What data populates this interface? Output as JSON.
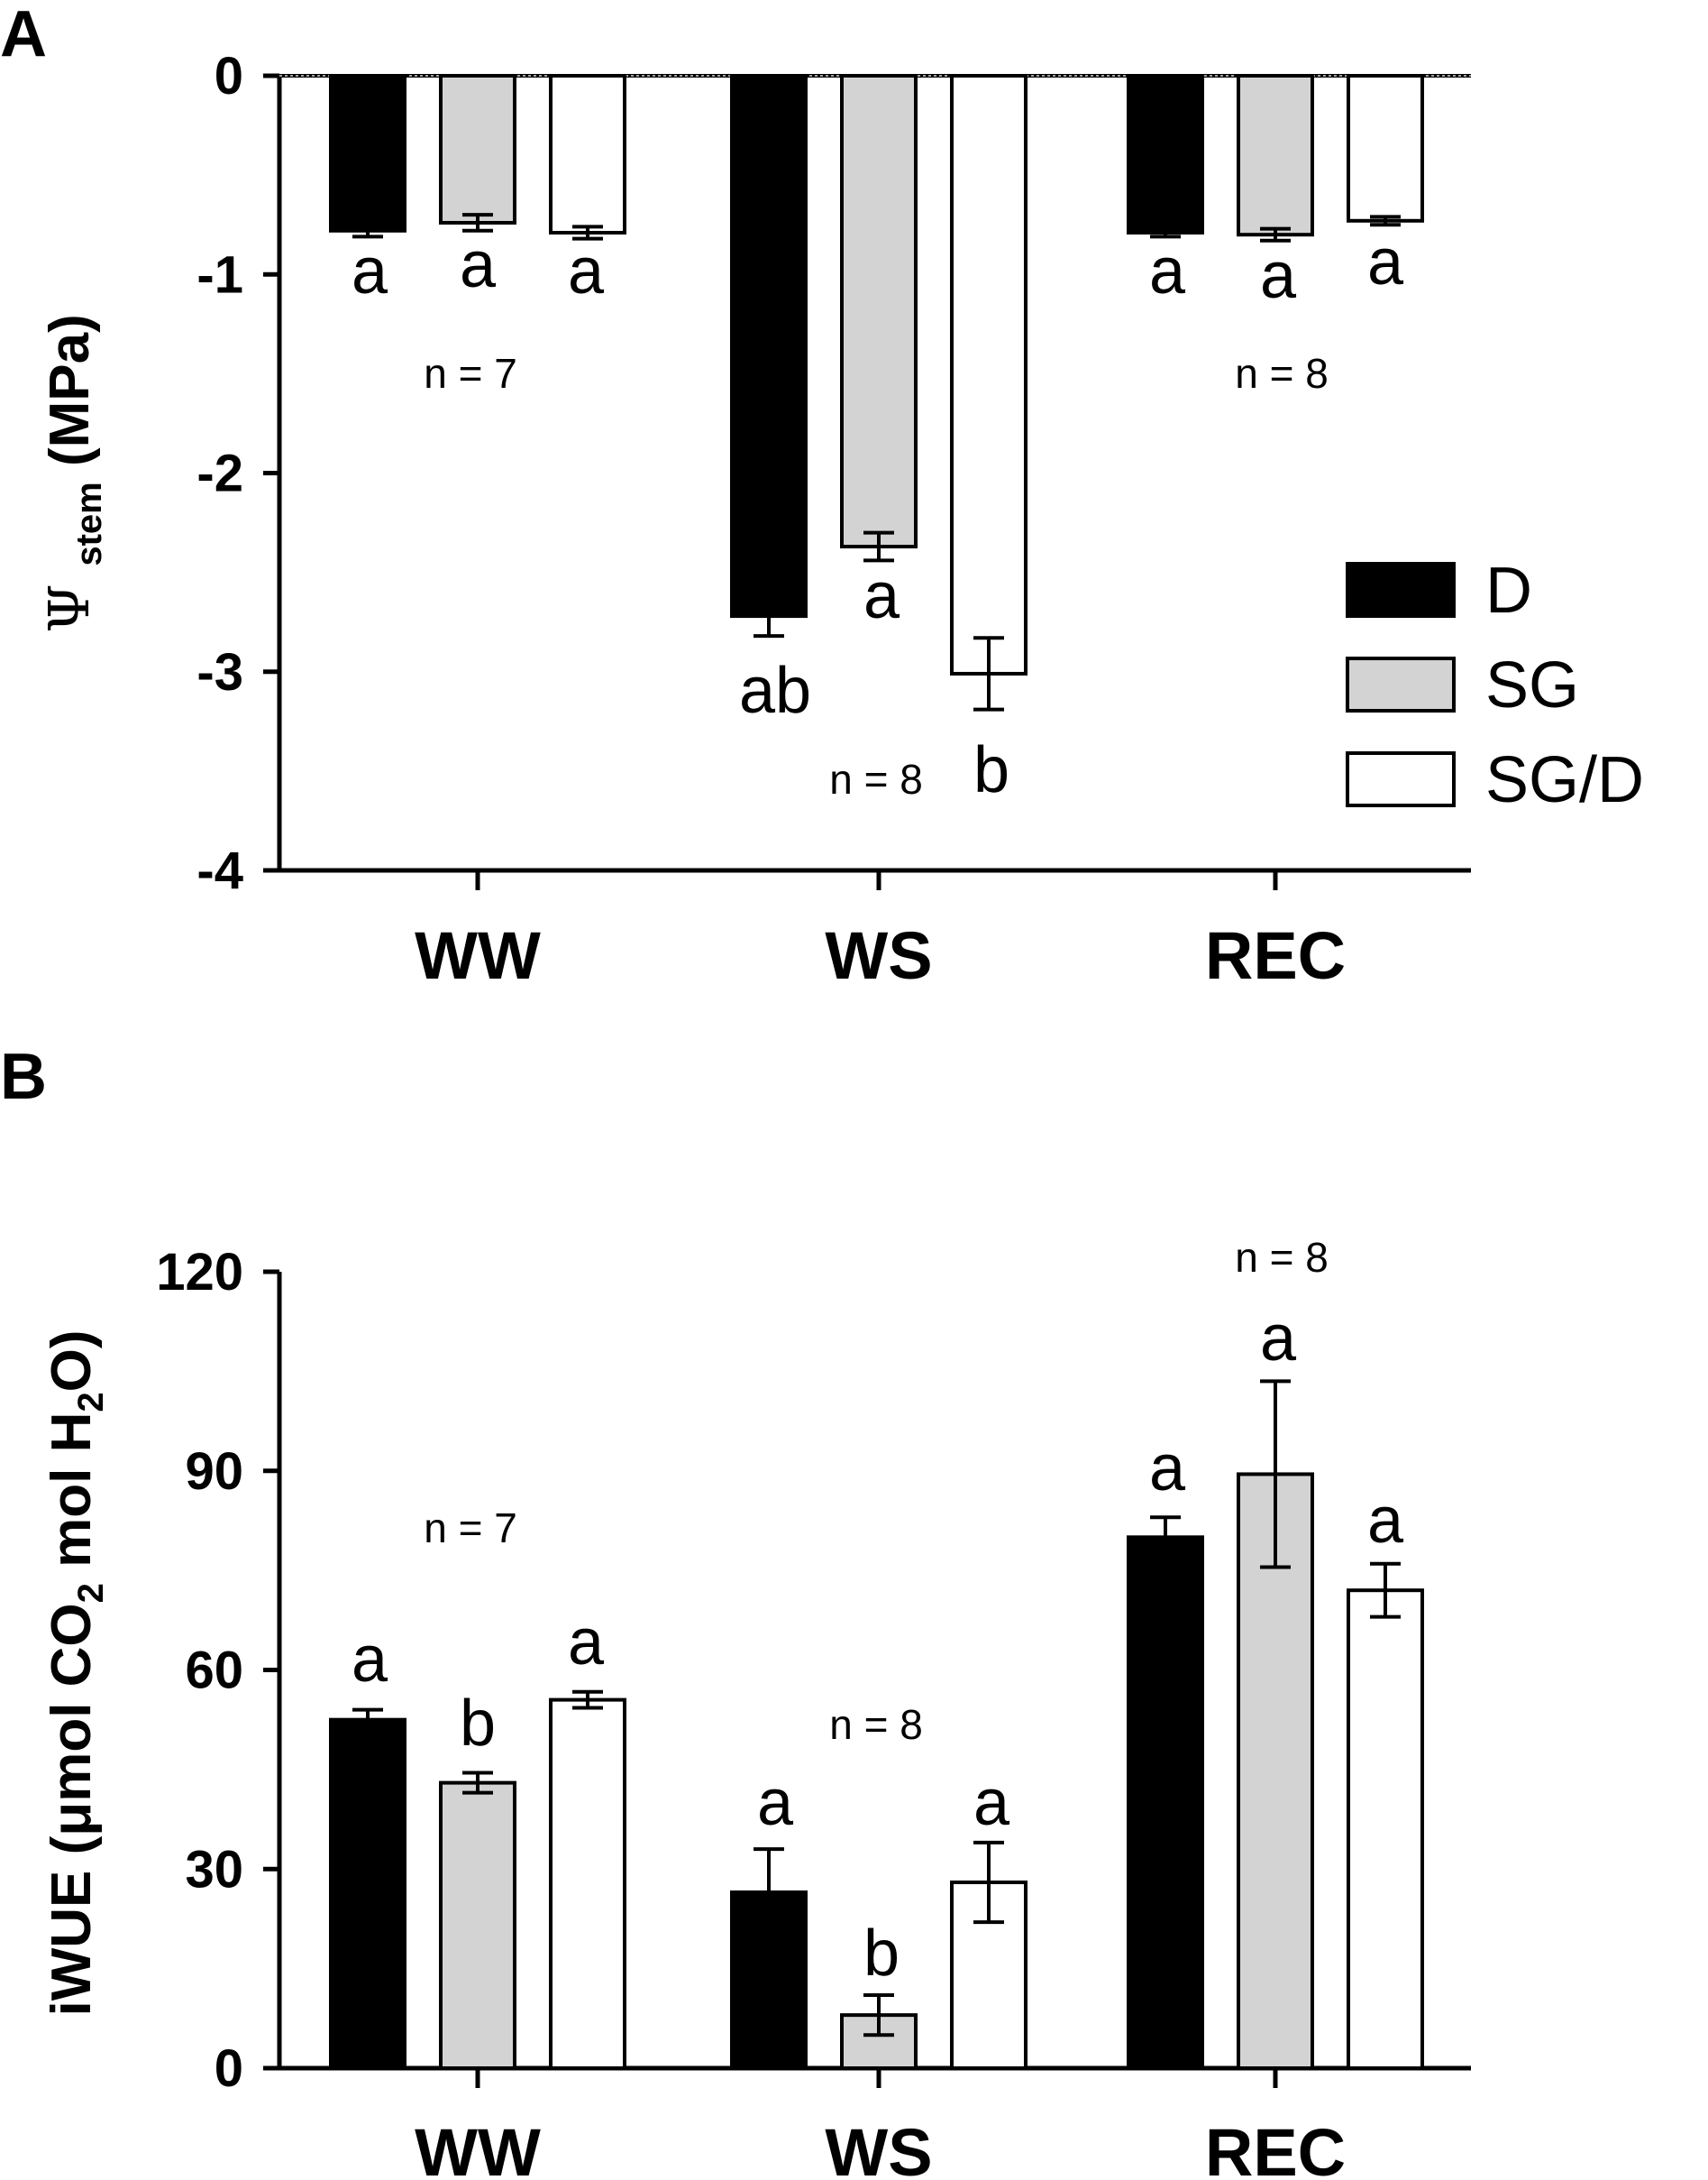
{
  "chart_data": [
    {
      "panel": "A",
      "type": "bar",
      "ylabel": "Ψ stem (MPa)",
      "ylabel_main": "Ψ",
      "ylabel_sub": "stem",
      "ylabel_unit": "(MPa)",
      "categories": [
        "WW",
        "WS",
        "REC"
      ],
      "ylim": [
        -4,
        0
      ],
      "yticks": [
        0,
        -1,
        -2,
        -3,
        -4
      ],
      "series": [
        {
          "name": "D",
          "color": "#000000",
          "values": [
            -0.78,
            -2.72,
            -0.79
          ],
          "errors": [
            0.03,
            0.1,
            0.02
          ],
          "letters": [
            "a",
            "ab",
            "a"
          ]
        },
        {
          "name": "SG",
          "color": "#d3d3d3",
          "values": [
            -0.74,
            -2.37,
            -0.8
          ],
          "errors": [
            0.04,
            0.07,
            0.03
          ],
          "letters": [
            "a",
            "a",
            "a"
          ]
        },
        {
          "name": "SG/D",
          "color": "#ffffff",
          "values": [
            -0.79,
            -3.01,
            -0.73
          ],
          "errors": [
            0.03,
            0.18,
            0.02
          ],
          "letters": [
            "a",
            "b",
            "a"
          ]
        }
      ],
      "annotations": [
        "n = 7",
        "n = 8",
        "n = 8"
      ],
      "legend": {
        "placement": "right",
        "entries": [
          "D",
          "SG",
          "SG/D"
        ]
      }
    },
    {
      "panel": "B",
      "type": "bar",
      "ylabel": "iWUE (μmol CO2 mol H2O)",
      "ylabel_parts": [
        "iWUE (",
        "μ",
        "mol CO",
        "2",
        " mol H",
        "2",
        "O)"
      ],
      "categories": [
        "WW",
        "WS",
        "REC"
      ],
      "ylim": [
        0,
        120
      ],
      "yticks": [
        0,
        30,
        60,
        90,
        120
      ],
      "series": [
        {
          "name": "D",
          "color": "#000000",
          "values": [
            52.5,
            26.5,
            80
          ],
          "errors": [
            1.5,
            6.5,
            3
          ],
          "letters": [
            "a",
            "a",
            "a"
          ]
        },
        {
          "name": "SG",
          "color": "#d3d3d3",
          "values": [
            43,
            8,
            89.5
          ],
          "errors": [
            1.5,
            3,
            14
          ],
          "letters": [
            "b",
            "b",
            "a"
          ]
        },
        {
          "name": "SG/D",
          "color": "#ffffff",
          "values": [
            55.5,
            28,
            72
          ],
          "errors": [
            1.2,
            6,
            4
          ],
          "letters": [
            "a",
            "a",
            "a"
          ]
        }
      ],
      "annotations": [
        "n = 7",
        "n = 8",
        "n = 8"
      ]
    }
  ]
}
